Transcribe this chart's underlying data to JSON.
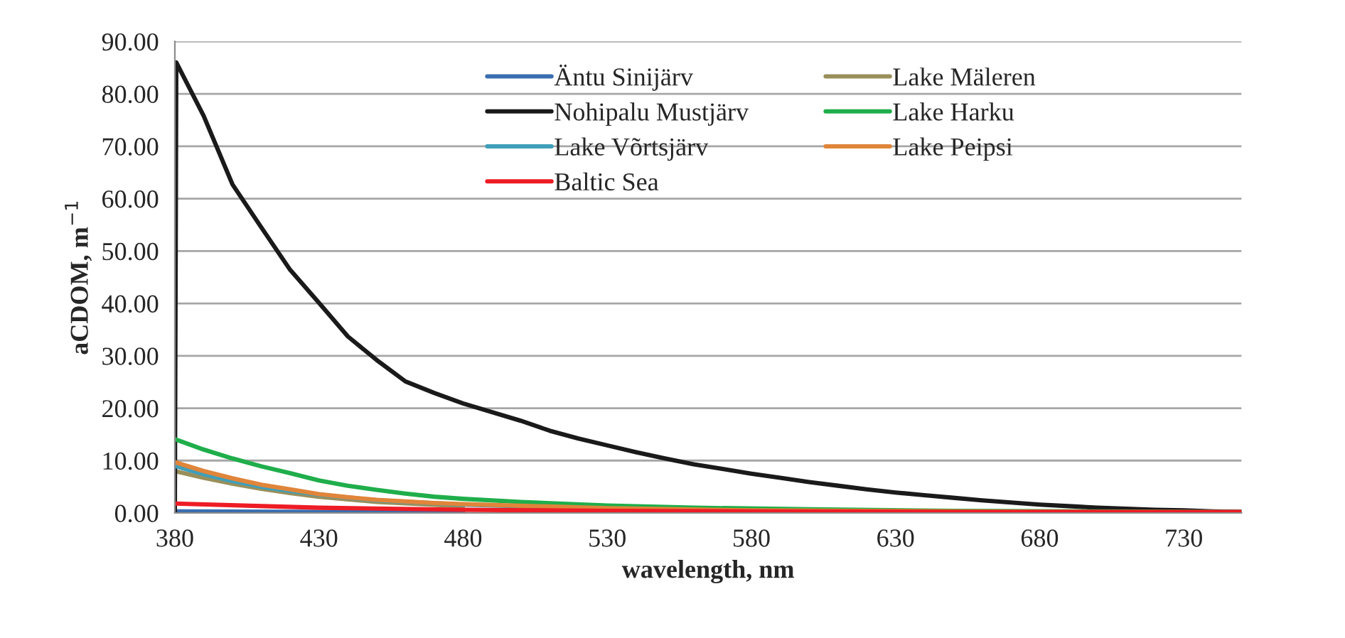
{
  "chart_data": {
    "type": "line",
    "xlabel": "wavelength, nm",
    "ylabel": "aCDOM, m$^{−1}$",
    "xlim": [
      380,
      750
    ],
    "xticks": [
      380,
      430,
      480,
      530,
      580,
      630,
      680,
      730
    ],
    "ylim": [
      0,
      90
    ],
    "yticks": [
      {
        "value": 0,
        "label": "0.00"
      },
      {
        "value": 10,
        "label": "10.00"
      },
      {
        "value": 20,
        "label": "20.00"
      },
      {
        "value": 30,
        "label": "30.00"
      },
      {
        "value": 40,
        "label": "40.00"
      },
      {
        "value": 50,
        "label": "50.00"
      },
      {
        "value": 60,
        "label": "60.00"
      },
      {
        "value": 70,
        "label": "70.00"
      },
      {
        "value": 80,
        "label": "80.00"
      },
      {
        "value": 90,
        "label": "90.00"
      }
    ],
    "grid": "y",
    "legend": "top",
    "marker": "none",
    "line_style": "solid",
    "series": [
      {
        "name": "Äntu Sinijärv",
        "color": "#3a6eb0",
        "x": [
          380,
          430,
          480
        ],
        "values": [
          0.3,
          0.2,
          0.1
        ]
      },
      {
        "name": "Lake Mäleren",
        "color": "#9a8f5a",
        "x": [
          380,
          390,
          400,
          410,
          420,
          430,
          450,
          480
        ],
        "values": [
          8.0,
          6.7,
          5.6,
          4.6,
          3.8,
          3.1,
          2.1,
          1.3
        ]
      },
      {
        "name": "Nohipalu Mustjärv",
        "color": "#1a1a1a",
        "x": [
          380,
          380.5,
          390,
          400,
          410,
          420,
          430,
          440,
          450,
          460,
          470,
          480,
          500,
          510,
          520,
          530,
          540,
          550,
          560,
          570,
          580,
          590,
          600,
          610,
          620,
          630,
          640,
          650,
          660,
          670,
          680,
          690,
          700,
          710,
          720,
          730,
          740,
          750
        ],
        "values": [
          0,
          86,
          75.8,
          62.7,
          54.5,
          46.4,
          40.1,
          33.7,
          29.2,
          25.1,
          22.9,
          20.9,
          17.6,
          15.7,
          14.2,
          12.9,
          11.6,
          10.4,
          9.3,
          8.4,
          7.5,
          6.7,
          5.9,
          5.2,
          4.5,
          3.9,
          3.4,
          2.9,
          2.4,
          2.0,
          1.6,
          1.3,
          1.0,
          0.8,
          0.6,
          0.5,
          0.3,
          0.2
        ]
      },
      {
        "name": "Lake Harku",
        "color": "#1fae4b",
        "x": [
          380,
          390,
          400,
          410,
          420,
          430,
          440,
          450,
          460,
          470,
          480,
          500,
          530,
          560,
          600,
          650,
          700,
          750
        ],
        "values": [
          14.1,
          12.1,
          10.4,
          8.9,
          7.6,
          6.2,
          5.2,
          4.4,
          3.7,
          3.1,
          2.7,
          2.1,
          1.4,
          1.0,
          0.7,
          0.4,
          0.3,
          0.2
        ]
      },
      {
        "name": "Lake Võrtsjärv",
        "color": "#3f9fba",
        "x": [
          380,
          390,
          400,
          410,
          420,
          430,
          450,
          480,
          530
        ],
        "values": [
          9.0,
          7.4,
          6.1,
          5.0,
          4.2,
          3.5,
          2.4,
          1.6,
          0.8
        ]
      },
      {
        "name": "Lake Peipsi",
        "color": "#e0853a",
        "x": [
          380,
          390,
          400,
          410,
          420,
          430,
          440,
          450,
          460,
          470,
          480,
          530,
          580,
          650,
          750
        ],
        "values": [
          9.7,
          8.0,
          6.6,
          5.4,
          4.5,
          3.6,
          3.0,
          2.5,
          2.2,
          1.9,
          1.7,
          0.9,
          0.5,
          0.3,
          0.1
        ]
      },
      {
        "name": "Baltic Sea",
        "color": "#ee1c25",
        "x": [
          380,
          430,
          480,
          530,
          580,
          650,
          750
        ],
        "values": [
          1.8,
          1.0,
          0.6,
          0.4,
          0.3,
          0.2,
          0.2
        ]
      }
    ]
  }
}
